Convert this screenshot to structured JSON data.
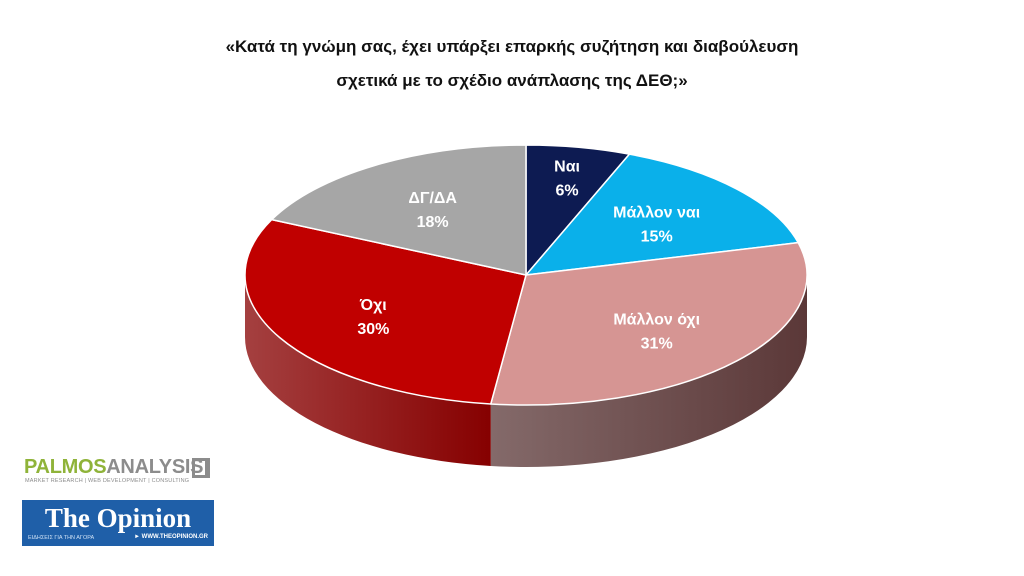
{
  "title": {
    "line1": "«Κατά τη γνώμη σας, έχει υπάρξει επαρκής συζήτηση και διαβούλευση",
    "line2": "σχετικά με το σχέδιο ανάπλασης της ΔΕΘ;»"
  },
  "chart_data": {
    "type": "pie",
    "title": "«Κατά τη γνώμη σας, έχει υπάρξει επαρκής συζήτηση και διαβούλευση σχετικά με το σχέδιο ανάπλασης της ΔΕΘ;»",
    "legend": "none",
    "slices": [
      {
        "label": "Ναι",
        "value": 6,
        "value_label": "6%",
        "color": "#0d1b52",
        "side_color": "#07102f",
        "label_color": "#ffffff"
      },
      {
        "label": "Μάλλον ναι",
        "value": 15,
        "value_label": "15%",
        "color": "#0ab0ea",
        "side_color": "#067aa3",
        "label_color": "#ffffff"
      },
      {
        "label": "Μάλλον όχι",
        "value": 31,
        "value_label": "31%",
        "color": "#d69593",
        "side_color": "#5b3838",
        "label_color": "#ffffff"
      },
      {
        "label": "Όχι",
        "value": 30,
        "value_label": "30%",
        "color": "#c00000",
        "side_color": "#860000",
        "label_color": "#ffffff"
      },
      {
        "label": "ΔΓ/ΔΑ",
        "value": 18,
        "value_label": "18%",
        "color": "#a6a6a6",
        "side_color": "#6f6f6f",
        "label_color": "#ffffff"
      }
    ]
  },
  "logos": {
    "palmos_part1": "PALMOS",
    "palmos_part2": "ANALYSIS",
    "palmos_tagline": "MARKET RESEARCH | WEB DEVELOPMENT | CONSULTING",
    "opinion_name": "The Opinion",
    "opinion_sub": "ΕΙΔΗΣΕΙΣ ΓΙΑ ΤΗΝ ΑΓΟΡΑ",
    "opinion_url": "► WWW.THEOPINION.GR"
  }
}
